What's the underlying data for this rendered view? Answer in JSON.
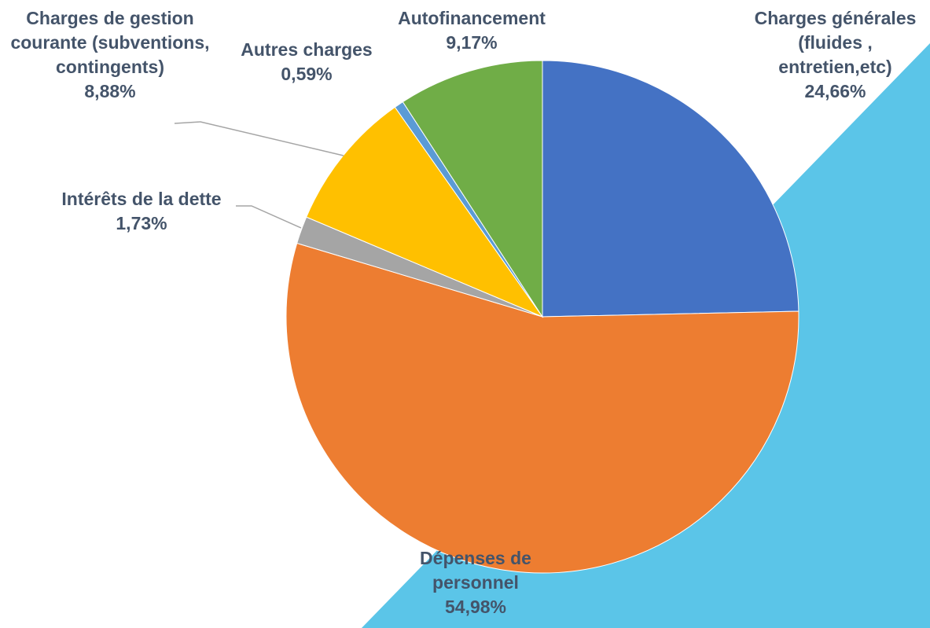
{
  "chart_data": {
    "type": "pie",
    "categories": [
      "Charges générales (fluides , entretien,etc)",
      "Dépenses de personnel",
      "Intérêts de la dette",
      "Charges de gestion courante (subventions, contingents)",
      "Autres charges",
      "Autofinancement"
    ],
    "values": [
      24.66,
      54.98,
      1.73,
      8.88,
      0.59,
      9.17
    ],
    "value_labels": [
      "24,66%",
      "54,98%",
      "1,73%",
      "8,88%",
      "0,59%",
      "9,17%"
    ],
    "colors": [
      "#4472c4",
      "#ed7d31",
      "#a5a5a5",
      "#ffc000",
      "#5b9bd5",
      "#70ad47"
    ]
  }
}
